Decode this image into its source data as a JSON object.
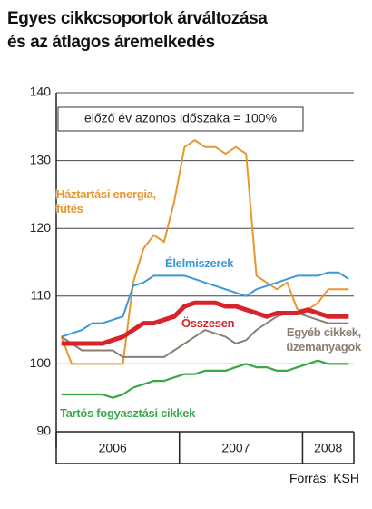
{
  "chart_data": {
    "type": "line",
    "title": [
      "Egyes cikkcsoportok árváltozása",
      "és az átlagos áremelkedés"
    ],
    "annotation": "előző év azonos időszaka = 100%",
    "source": "Forrás: KSH",
    "categories": [
      null,
      null,
      null,
      null,
      null,
      "2006",
      null,
      null,
      null,
      null,
      null,
      null,
      null,
      null,
      null,
      null,
      null,
      "2007",
      null,
      null,
      null,
      null,
      null,
      null,
      null,
      null,
      "2008",
      null,
      null
    ],
    "ylim": [
      90,
      140
    ],
    "yticks": [
      90,
      100,
      110,
      120,
      130,
      140
    ],
    "grid": true,
    "series": [
      {
        "name": "Háztartási energia, fűtés",
        "color": "#e8962e",
        "values": [
          104,
          100,
          100,
          100,
          100,
          100,
          100,
          112,
          117,
          119,
          118,
          124,
          132,
          133,
          132,
          132,
          131,
          132,
          131,
          113,
          112,
          111,
          112,
          108,
          108,
          109,
          111,
          111,
          111
        ]
      },
      {
        "name": "Élelmiszerek",
        "color": "#3a9ad9",
        "values": [
          104,
          104.5,
          105,
          106,
          106,
          106.5,
          107,
          111.5,
          112,
          113,
          113,
          113,
          113,
          112.5,
          112,
          111.5,
          111,
          110.5,
          110,
          111,
          111.5,
          112,
          112.5,
          113,
          113,
          113,
          113.5,
          113.5,
          112.5
        ]
      },
      {
        "name": "Egyéb cikkek, üzemanyagok",
        "color": "#8a7f72",
        "values": [
          104,
          103,
          102,
          102,
          102,
          102,
          101,
          101,
          101,
          101,
          101,
          102,
          103,
          104,
          105,
          104.5,
          104,
          103,
          103.5,
          105,
          106,
          107,
          107.5,
          107.5,
          107,
          106.5,
          106,
          106,
          106
        ]
      },
      {
        "name": "Összesen",
        "color": "#d9232b",
        "values": [
          103,
          103,
          103,
          103,
          103,
          103.5,
          104,
          105,
          106,
          106,
          106.5,
          107,
          108.5,
          109,
          109,
          109,
          108.5,
          108.5,
          108,
          107.5,
          107,
          107.5,
          107.5,
          107.5,
          108,
          107.5,
          107,
          107,
          107
        ]
      },
      {
        "name": "Tartós fogyasztási cikkek",
        "color": "#3aa84a",
        "values": [
          95.5,
          95.5,
          95.5,
          95.5,
          95.5,
          95,
          95.5,
          96.5,
          97,
          97.5,
          97.5,
          98,
          98.5,
          98.5,
          99,
          99,
          99,
          99.5,
          100,
          99.5,
          99.5,
          99,
          99,
          99.5,
          100,
          100.5,
          100,
          100,
          100
        ]
      }
    ]
  }
}
